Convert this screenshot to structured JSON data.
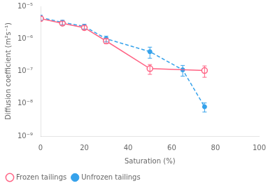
{
  "chart_data": {
    "type": "line",
    "xlabel": "Saturation (%)",
    "ylabel": "Diffusion coefficient (m²s⁻¹)",
    "log": "y",
    "xlim": [
      0,
      100
    ],
    "xticks": [
      0,
      20,
      40,
      60,
      80,
      100
    ],
    "ylim": [
      1e-09,
      1e-05
    ],
    "yticks": [
      {
        "value": 1e-09,
        "label": "10⁻⁹"
      },
      {
        "value": 1e-08,
        "label": "10⁻⁸"
      },
      {
        "value": 1e-07,
        "label": "10⁻⁷"
      },
      {
        "value": 1e-06,
        "label": "10⁻⁶"
      },
      {
        "value": 1e-05,
        "label": "10⁻⁵"
      }
    ],
    "grid": false,
    "legend": "lower left",
    "series": [
      {
        "name": "Unfrozen tailings",
        "marker": "filled_circle",
        "line_style": "dashed",
        "x": [
          0,
          10,
          20,
          30,
          50,
          65,
          75
        ],
        "values": [
          4.5e-06,
          3.2e-06,
          2.4e-06,
          1e-06,
          4e-07,
          1.1e-07,
          8e-09
        ],
        "error_low": [
          8e-07,
          5e-07,
          4e-07,
          2e-07,
          1.5e-07,
          4e-08,
          2.5e-09
        ],
        "error_high": [
          8e-07,
          5e-07,
          4e-07,
          2e-07,
          1.5e-07,
          4e-08,
          2.5e-09
        ]
      },
      {
        "name": "Frozen tailings",
        "marker": "open_circle",
        "line_style": "solid",
        "x": [
          0,
          10,
          20,
          30,
          50,
          75
        ],
        "values": [
          4.2e-06,
          3e-06,
          2.2e-06,
          8.5e-07,
          1.2e-07,
          1.05e-07
        ],
        "error_low": [
          7e-07,
          4e-07,
          3e-07,
          1.5e-07,
          4e-08,
          4e-08
        ],
        "error_high": [
          7e-07,
          4e-07,
          3e-07,
          1.5e-07,
          4e-08,
          4e-08
        ]
      }
    ]
  }
}
